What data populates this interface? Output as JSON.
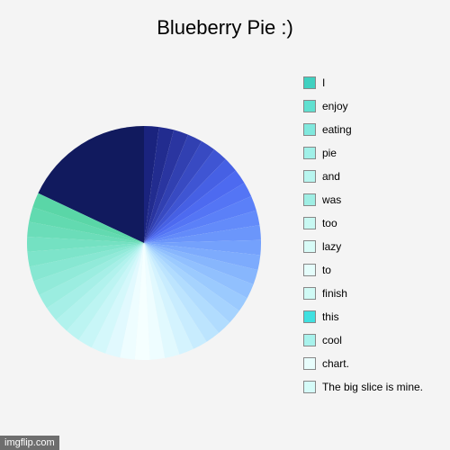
{
  "chart": {
    "type": "pie",
    "title": "Blueberry Pie :)",
    "title_fontsize": 22,
    "background_color": "#f4f4f4",
    "big_slice": {
      "value": 18,
      "color": "#111a5e"
    },
    "small_slices_total": 82,
    "small_slice_count": 40,
    "gradient_colors": [
      "#1a237e",
      "#222c8f",
      "#2a35a0",
      "#3140b1",
      "#384ac2",
      "#3f55d3",
      "#4660e4",
      "#4d6af0",
      "#5475f5",
      "#5b80f8",
      "#638bfa",
      "#6b96fb",
      "#74a1fc",
      "#7dabfd",
      "#87b6fd",
      "#91c0fe",
      "#9bcafe",
      "#a6d3fe",
      "#b1dcfe",
      "#bce4fe",
      "#c8ecfe",
      "#d4f3fe",
      "#e1f9fe",
      "#eefdff",
      "#f5ffff",
      "#eefdff",
      "#e1f9fe",
      "#d4f8fb",
      "#c8f6f7",
      "#bcf4f2",
      "#b1f2ed",
      "#a6efe7",
      "#9bede0",
      "#91ead9",
      "#87e7d2",
      "#7de4ca",
      "#74e1c2",
      "#6bddb9",
      "#62dab0",
      "#5ad6a7"
    ],
    "legend": [
      {
        "label": "I",
        "color": "#40d0c0"
      },
      {
        "label": "enjoy",
        "color": "#60e0d0"
      },
      {
        "label": "eating",
        "color": "#80e8dd"
      },
      {
        "label": "pie",
        "color": "#a0f0e8"
      },
      {
        "label": "and",
        "color": "#b8f5ef"
      },
      {
        "label": "was",
        "color": "#9feee4"
      },
      {
        "label": "too",
        "color": "#c8f8f2"
      },
      {
        "label": "lazy",
        "color": "#d8fbf7"
      },
      {
        "label": "to",
        "color": "#e5fdfb"
      },
      {
        "label": "finish",
        "color": "#d0faf5"
      },
      {
        "label": "this",
        "color": "#40e0e0"
      },
      {
        "label": "cool",
        "color": "#a8f2ec"
      },
      {
        "label": "chart.",
        "color": "#e8fdfc"
      },
      {
        "label": "The big slice is mine.",
        "color": "#d5fbf8"
      }
    ]
  },
  "watermark": "imgflip.com"
}
